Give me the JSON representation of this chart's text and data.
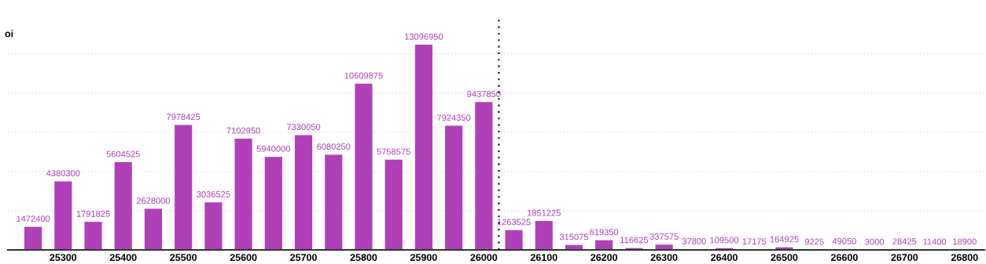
{
  "chart_data": {
    "type": "bar",
    "ylabel": "oi",
    "color": "#b040b8",
    "x": [
      25250,
      25300,
      25350,
      25400,
      25450,
      25500,
      25550,
      25600,
      25650,
      25700,
      25750,
      25800,
      25850,
      25900,
      25950,
      26000,
      26050,
      26100,
      26150,
      26200,
      26250,
      26300,
      26350,
      26400,
      26450,
      26500,
      26550,
      26600,
      26650,
      26700,
      26750,
      26800
    ],
    "values": [
      1472400,
      4380300,
      1791825,
      5604525,
      2628000,
      7978425,
      3036525,
      7102950,
      5940000,
      7330050,
      6080250,
      10609875,
      5758575,
      13096950,
      7924350,
      9437850,
      1263525,
      1851225,
      315075,
      619350,
      116625,
      337575,
      37800,
      109500,
      17175,
      164925,
      9225,
      49050,
      3000,
      28425,
      11400,
      18900
    ],
    "xlim": [
      25208,
      26833
    ],
    "xticks": [
      25300,
      25400,
      25500,
      25600,
      25700,
      25800,
      25900,
      26000,
      26100,
      26200,
      26300,
      26400,
      26500,
      26600,
      26700,
      26800
    ],
    "ylim": [
      0,
      15000000
    ],
    "yticks": [
      {
        "value": 2500000,
        "label": null
      },
      {
        "value": 5000000,
        "label": null
      },
      {
        "value": 7500000,
        "label": null
      },
      {
        "value": 10000000,
        "label": null
      },
      {
        "value": 12500000,
        "label": null
      }
    ],
    "tick_labels": "x",
    "grid": "y",
    "data_labels": true,
    "ref_lines": [
      {
        "axis": "x",
        "value": 26025,
        "label": null,
        "color": "#000000",
        "line_style": "dotted"
      }
    ]
  }
}
